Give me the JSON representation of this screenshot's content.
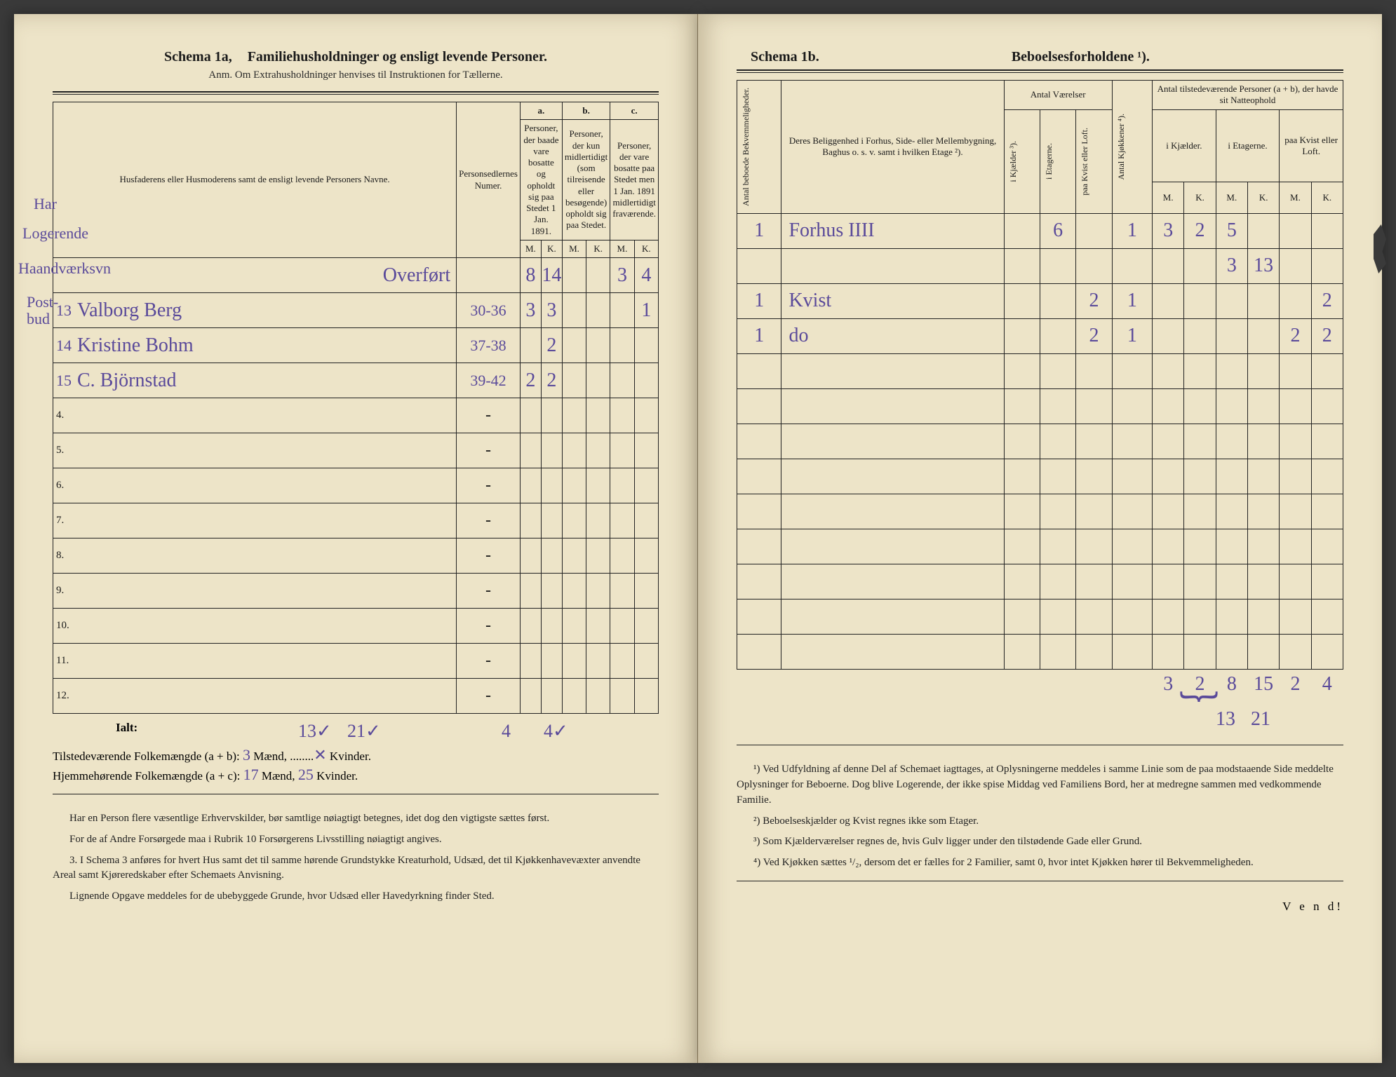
{
  "left": {
    "schema_label": "Schema 1a,",
    "schema_title": "Familiehusholdninger og ensligt levende Personer.",
    "anm": "Anm. Om Extrahusholdninger henvises til Instruktionen for Tællerne.",
    "col_names": "Husfaderens eller Husmoderens samt de ensligt levende Personers Navne.",
    "col_numer": "Personsedlernes Numer.",
    "abc": {
      "a": "a.",
      "b": "b.",
      "c": "c."
    },
    "col_a": "Personer, der baade vare bosatte og opholdt sig paa Stedet 1 Jan. 1891.",
    "col_b": "Personer, der kun midlertidigt (som tilreisende eller besøgende) opholdt sig paa Stedet.",
    "col_c": "Personer, der vare bosatte paa Stedet men 1 Jan. 1891 midlertidigt fraværende.",
    "mk": {
      "m": "M.",
      "k": "K."
    },
    "side_annot": [
      "Har",
      "Logerende",
      "Haandværksvn",
      "Post-",
      "bud"
    ],
    "overfort": "Overført",
    "overfort_vals": {
      "aM": "8",
      "aK": "14",
      "cM": "3",
      "cK": "4"
    },
    "rows": [
      {
        "n": "13",
        "name": "Valborg Berg",
        "num": "30-36",
        "aM": "3",
        "aK": "3",
        "bM": "",
        "bK": "",
        "cM": "",
        "cK": "1"
      },
      {
        "n": "14",
        "name": "Kristine Bohm",
        "num": "37-38",
        "aM": "",
        "aK": "2",
        "bM": "",
        "bK": "",
        "cM": "",
        "cK": ""
      },
      {
        "n": "15",
        "name": "C. Björnstad",
        "num": "39-42",
        "aM": "2",
        "aK": "2",
        "bM": "",
        "bK": "",
        "cM": "",
        "cK": ""
      }
    ],
    "empty_row_nums": [
      "4.",
      "5.",
      "6.",
      "7.",
      "8.",
      "9.",
      "10.",
      "11.",
      "12."
    ],
    "bottom_hand": {
      "aM_top": "13✓",
      "aK_top": "21✓",
      "cM_top": "4",
      "cK_top": "4✓",
      "aM_b": "13",
      "aK_b": "21",
      "cM_b": "4✓",
      "cK_b": "✓"
    },
    "ialt_label": "Ialt:",
    "tilstede_line": "Tilstedeværende Folkemængde (a + b):",
    "hjem_line": "Hjemmehørende Folkemængde (a + c):",
    "maend": "Mænd,",
    "kvinder": "Kvinder.",
    "tilstede_m": "3",
    "tilstede_k": "✕",
    "hjem_m": "17",
    "hjem_k": "25",
    "foot": [
      "Har en Person flere væsentlige Erhvervskilder, bør samtlige nøiagtigt betegnes, idet dog den vigtigste sættes først.",
      "For de af Andre Forsørgede maa i Rubrik 10 Forsørgerens Livsstilling nøiagtigt angives.",
      "3. I Schema 3 anføres for hvert Hus samt det til samme hørende Grundstykke Kreaturhold, Udsæd, det til Kjøkkenhavevæxter anvendte Areal samt Kjøreredskaber efter Schemaets Anvisning.",
      "Lignende Opgave meddeles for de ubebyggede Grunde, hvor Udsæd eller Havedyrkning finder Sted."
    ]
  },
  "right": {
    "schema_label": "Schema 1b.",
    "schema_title": "Beboelsesforholdene ¹).",
    "col_antal_bekv": "Antal beboede Bekvemmeligheder.",
    "col_belig": "Deres Beliggenhed i Forhus, Side- eller Mellembygning, Baghus o. s. v. samt i hvilken Etage ²).",
    "col_antal_vaer": "Antal Værelser",
    "col_kjokkener": "Antal Kjøkkener ⁴).",
    "col_tilstede": "Antal tilstedeværende Personer (a + b), der havde sit Natteophold",
    "sub": {
      "kjaelder": "i Kjælder ³).",
      "etagerne": "i Etagerne.",
      "kvist": "paa Kvist eller Loft.",
      "kjaelder2": "i Kjælder."
    },
    "mk": {
      "m": "M.",
      "k": "K."
    },
    "rows": [
      {
        "bekv": "1",
        "belig": "Forhus IIII",
        "vk": "",
        "ve": "6",
        "vl": "",
        "kj": "1",
        "nKm": "3",
        "nKk": "2",
        "nEm": "5",
        "nEk": "",
        "nLm": "",
        "nLk": ""
      },
      {
        "bekv": "",
        "belig": "",
        "vk": "",
        "ve": "",
        "vl": "",
        "kj": "",
        "nKm": "",
        "nKk": "",
        "nEm": "3",
        "nEk": "13",
        "nLm": "",
        "nLk": ""
      },
      {
        "bekv": "1",
        "belig": "Kvist",
        "vk": "",
        "ve": "",
        "vl": "2",
        "kj": "1",
        "nKm": "",
        "nKk": "",
        "nEm": "",
        "nEk": "",
        "nLm": "",
        "nLk": "2"
      },
      {
        "bekv": "1",
        "belig": "do",
        "vk": "",
        "ve": "",
        "vl": "2",
        "kj": "1",
        "nKm": "",
        "nKk": "",
        "nEm": "",
        "nEk": "",
        "nLm": "2",
        "nLk": "2"
      }
    ],
    "empty_rows": 9,
    "sum_vals": {
      "nKm": "3",
      "nKk": "2",
      "nEm": "8",
      "nEk": "15",
      "nLm": "2",
      "nLk": "4"
    },
    "brace_sum": {
      "m": "13",
      "k": "21"
    },
    "foot": [
      "¹) Ved Udfyldning af denne Del af Schemaet iagttages, at Oplysningerne meddeles i samme Linie som de paa modstaaende Side meddelte Oplysninger for Beboerne. Dog blive Logerende, der ikke spise Middag ved Familiens Bord, her at medregne sammen med vedkommende Familie.",
      "²) Beboelseskjælder og Kvist regnes ikke som Etager.",
      "³) Som Kjælderværelser regnes de, hvis Gulv ligger under den tilstødende Gade eller Grund.",
      "⁴) Ved Kjøkken sættes ¹/₂, dersom det er fælles for 2 Familier, samt 0, hvor intet Kjøkken hører til Bekvemmeligheden."
    ],
    "vend": "V e n d!"
  },
  "style": {
    "paper_bg": "#ede4c8",
    "ink": "#1a1a1a",
    "handwrite_color": "#5a4a9a",
    "rule_color": "#222222"
  }
}
